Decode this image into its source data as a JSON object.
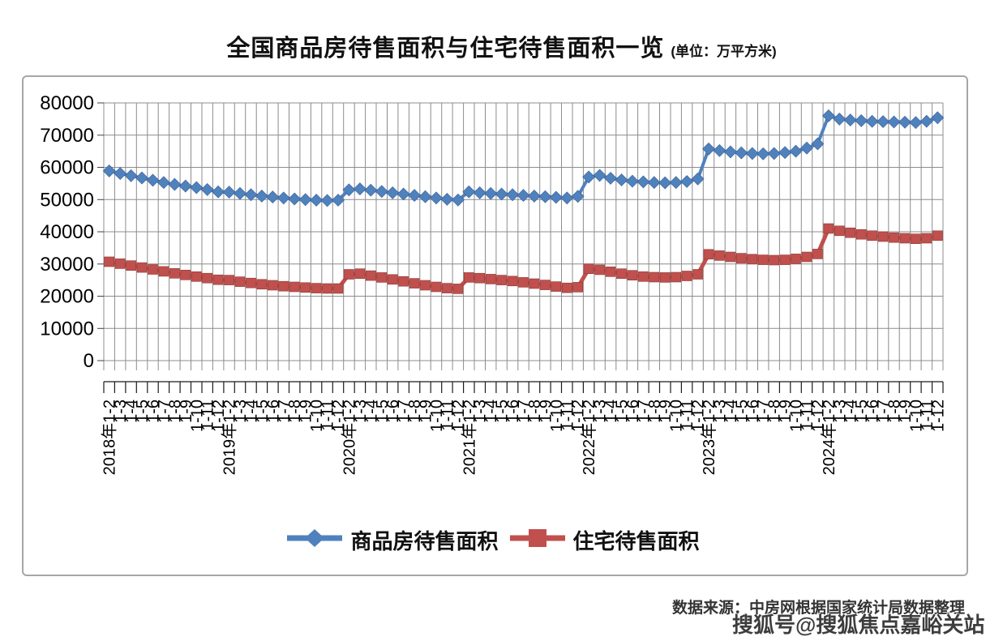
{
  "title": {
    "text": "全国商品房待售面积与住宅待售面积一览",
    "unit": "(单位：万平方米)"
  },
  "source": "数据来源：中房网根据国家统计局数据整理",
  "watermark": "搜狐号@搜狐焦点嘉峪关站",
  "chart_data": {
    "type": "line",
    "title": "全国商品房待售面积与住宅待售面积一览",
    "unit": "万平方米",
    "xlabel": "",
    "ylabel": "",
    "ylim": [
      0,
      80000
    ],
    "ytick_step": 10000,
    "grid": true,
    "legend_position": "bottom",
    "categories": [
      "2018年1-2",
      "1-3",
      "1-4",
      "1-5",
      "1-6",
      "1-7",
      "1-8",
      "1-9",
      "1-10",
      "1-11",
      "1-12",
      "2019年1-2",
      "1-3",
      "1-4",
      "1-5",
      "1-6",
      "1-7",
      "1-8",
      "1-9",
      "1-10",
      "1-11",
      "1-12",
      "2020年1-2",
      "1-3",
      "1-4",
      "1-5",
      "1-6",
      "1-7",
      "1-8",
      "1-9",
      "1-10",
      "1-11",
      "1-12",
      "2021年1-2",
      "1-3",
      "1-4",
      "1-5",
      "1-6",
      "1-7",
      "1-8",
      "1-9",
      "1-10",
      "1-11",
      "1-12",
      "2022年1-2",
      "1-3",
      "1-4",
      "1-5",
      "1-6",
      "1-7",
      "1-8",
      "1-9",
      "1-10",
      "1-11",
      "1-12",
      "2023年1-2",
      "1-3",
      "1-4",
      "1-5",
      "1-6",
      "1-7",
      "1-8",
      "1-9",
      "1-10",
      "1-11",
      "1-12",
      "2024年1-2",
      "1-3",
      "1-4",
      "1-5",
      "1-6",
      "1-7",
      "1-8",
      "1-9",
      "1-10",
      "1-11",
      "1-12"
    ],
    "series": [
      {
        "name": "商品房待售面积",
        "marker": "diamond",
        "color": "#4F81BD",
        "values": [
          58900,
          58100,
          57400,
          56700,
          56000,
          55300,
          54700,
          54200,
          53700,
          53100,
          52400,
          52300,
          51900,
          51500,
          51100,
          50800,
          50500,
          50200,
          50000,
          49800,
          49700,
          49800,
          53000,
          53300,
          52900,
          52500,
          52100,
          51700,
          51300,
          50900,
          50500,
          50100,
          49850,
          52400,
          52100,
          51900,
          51700,
          51500,
          51300,
          51100,
          50900,
          50700,
          50500,
          51000,
          57000,
          57500,
          56600,
          56100,
          55700,
          55500,
          55300,
          55200,
          55300,
          55600,
          56400,
          65700,
          65200,
          64800,
          64500,
          64300,
          64200,
          64300,
          64600,
          65000,
          66000,
          67300,
          76000,
          75000,
          74700,
          74500,
          74300,
          74200,
          74100,
          74000,
          73900,
          74300,
          75400
        ]
      },
      {
        "name": "住宅待售面积",
        "marker": "square",
        "color": "#C0504D",
        "values": [
          30700,
          30100,
          29500,
          28900,
          28300,
          27700,
          27100,
          26600,
          26100,
          25600,
          25100,
          25000,
          24500,
          24100,
          23700,
          23400,
          23100,
          22900,
          22700,
          22500,
          22400,
          22400,
          26800,
          27000,
          26400,
          25800,
          25200,
          24600,
          24000,
          23400,
          22900,
          22500,
          22300,
          25800,
          25600,
          25300,
          25000,
          24700,
          24300,
          23900,
          23500,
          23000,
          22600,
          22800,
          28500,
          28200,
          27600,
          27000,
          26500,
          26100,
          25900,
          25800,
          25900,
          26300,
          26800,
          33000,
          32600,
          32200,
          31800,
          31500,
          31300,
          31200,
          31300,
          31600,
          32200,
          33100,
          41000,
          40300,
          39700,
          39200,
          38800,
          38500,
          38200,
          38000,
          37800,
          38000,
          38800
        ]
      }
    ]
  }
}
